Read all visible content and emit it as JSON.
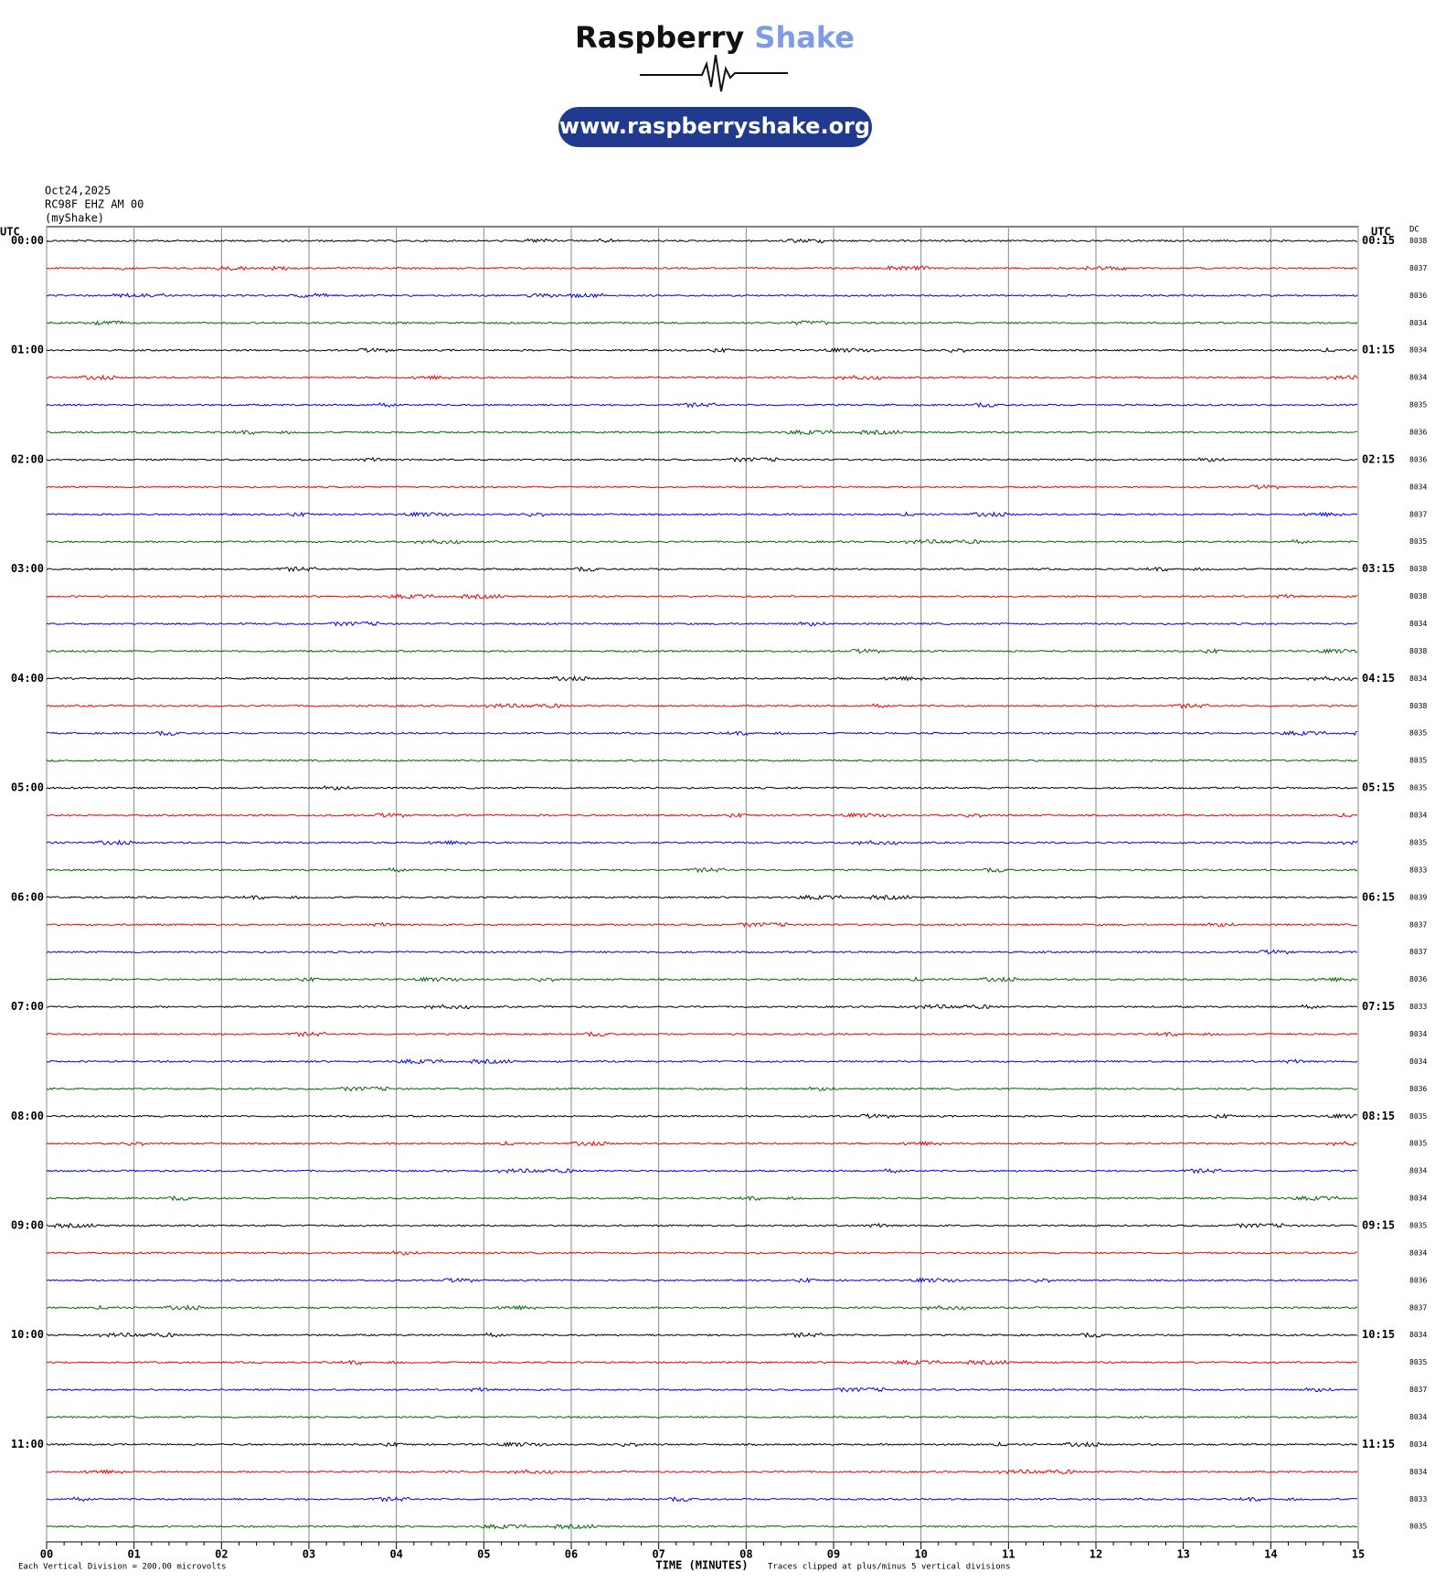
{
  "logo": {
    "word1": "Raspberry",
    "word2": "Shake",
    "url": "www.raspberryshake.org"
  },
  "chart_data": {
    "type": "helicorder",
    "header": [
      "Oct24,2025",
      "RC98F EHZ AM 00",
      "(myShake)"
    ],
    "left_axis_title": "UTC",
    "right_axis_title": "UTC",
    "dc_title": "DC",
    "left_labels": [
      "00:00",
      "01:00",
      "02:00",
      "03:00",
      "04:00",
      "05:00",
      "06:00",
      "07:00",
      "08:00",
      "09:00",
      "10:00",
      "11:00"
    ],
    "right_labels": [
      "00:15",
      "01:15",
      "02:15",
      "03:15",
      "04:15",
      "05:15",
      "06:15",
      "07:15",
      "08:15",
      "09:15",
      "10:15",
      "11:15"
    ],
    "dc_values": [
      8038,
      8037,
      8036,
      8034,
      8034,
      8034,
      8035,
      8036,
      8036,
      8034,
      8037,
      8035,
      8038,
      8038,
      8034,
      8038,
      8034,
      8038,
      8035,
      8035,
      8035,
      8034,
      8035,
      8033,
      8039,
      8037,
      8037,
      8036,
      8033,
      8034,
      8034,
      8036,
      8035,
      8035,
      8034,
      8034,
      8035,
      8034,
      8036,
      8037,
      8034,
      8035,
      8037,
      8034,
      8034,
      8034,
      8033,
      8035
    ],
    "trace_colors": [
      "#000000",
      "#ee0000",
      "#0000ee",
      "#006600"
    ],
    "xlim": [
      0,
      15
    ],
    "xticks": [
      {
        "value": 0,
        "label": "00"
      },
      {
        "value": 1,
        "label": "01"
      },
      {
        "value": 2,
        "label": "02"
      },
      {
        "value": 3,
        "label": "03"
      },
      {
        "value": 4,
        "label": "04"
      },
      {
        "value": 5,
        "label": "05"
      },
      {
        "value": 6,
        "label": "06"
      },
      {
        "value": 7,
        "label": "07"
      },
      {
        "value": 8,
        "label": "08"
      },
      {
        "value": 9,
        "label": "09"
      },
      {
        "value": 10,
        "label": "10"
      },
      {
        "value": 11,
        "label": "11"
      },
      {
        "value": 12,
        "label": "12"
      },
      {
        "value": 13,
        "label": "13"
      },
      {
        "value": 14,
        "label": "14"
      },
      {
        "value": 15,
        "label": "15"
      }
    ],
    "x_label": "TIME (MINUTES)",
    "scale_note": "Each Vertical Division =  200.00 microvolts",
    "clip_note": "Traces clipped at plus/minus 5 vertical divisions",
    "grid": true
  }
}
